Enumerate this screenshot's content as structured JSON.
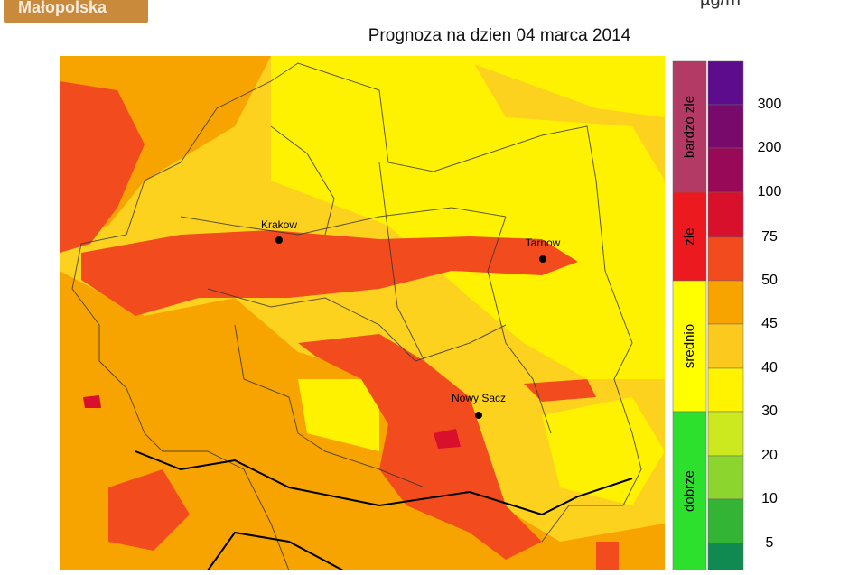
{
  "header": {
    "logo": "Małopolska",
    "unit": "µg/m"
  },
  "title": "Prognoza na dzien  04 marca 2014",
  "cities": [
    {
      "label": "Krakow"
    },
    {
      "label": "Tarnow"
    },
    {
      "label": "Nowy Sacz"
    }
  ],
  "scale": {
    "categories": [
      {
        "label": "bardzo zle",
        "color": "#b23a64"
      },
      {
        "label": "zle",
        "color": "#ec1a1e"
      },
      {
        "label": "srednio",
        "color": "#ffff00"
      },
      {
        "label": "dobrze",
        "color": "#2ee02e"
      }
    ],
    "bins": [
      {
        "color": "#5c0c8c"
      },
      {
        "color": "#780a6c"
      },
      {
        "color": "#980a58"
      },
      {
        "color": "#d8102c"
      },
      {
        "color": "#f24c1e"
      },
      {
        "color": "#f8a400"
      },
      {
        "color": "#fcca1e"
      },
      {
        "color": "#fff300"
      },
      {
        "color": "#cce81e"
      },
      {
        "color": "#8cd42e"
      },
      {
        "color": "#34b434"
      },
      {
        "color": "#108a50"
      }
    ],
    "ticks": [
      300,
      200,
      100,
      75,
      50,
      45,
      40,
      30,
      20,
      10,
      5
    ]
  }
}
